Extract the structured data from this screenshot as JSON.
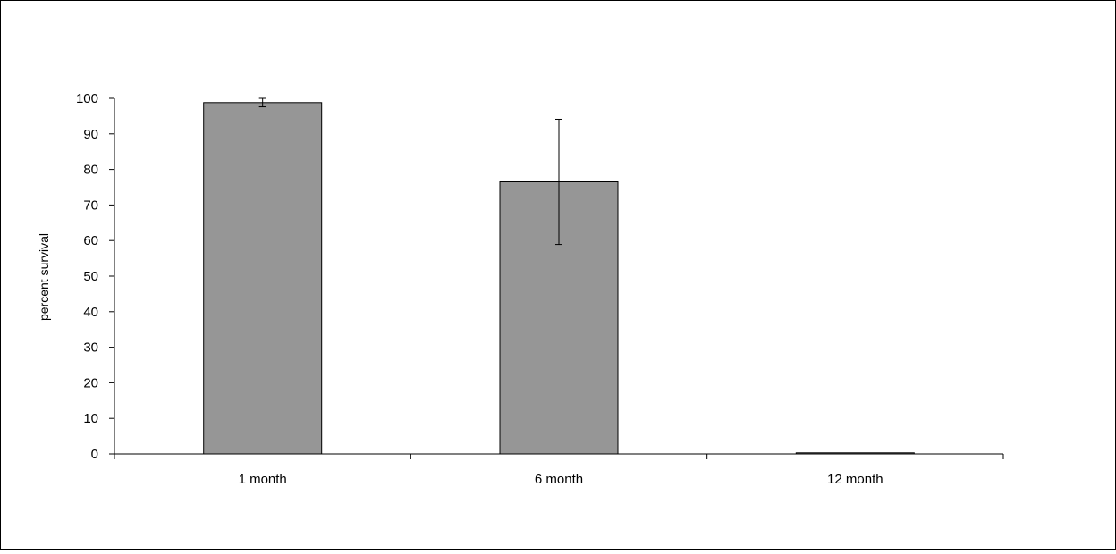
{
  "chart_data": {
    "type": "bar",
    "title": "",
    "xlabel": "",
    "ylabel": "percent survival",
    "categories": [
      "1 month",
      "6 month",
      "12 month"
    ],
    "series": [
      {
        "values": [
          98.8,
          76.5,
          0.3
        ],
        "error": [
          1.2,
          17.6,
          0
        ]
      }
    ],
    "ylim": [
      0,
      100
    ],
    "yticks": [
      0,
      10,
      20,
      30,
      40,
      50,
      60,
      70,
      80,
      90,
      100
    ],
    "ytick_labels": [
      "0",
      "10",
      "20",
      "30",
      "40",
      "50",
      "60",
      "70",
      "80",
      "90",
      "100"
    ],
    "grid": false,
    "legend": "none",
    "colors": {
      "bar_fill": "#969696",
      "bar_stroke": "#000000",
      "axis": "#000000",
      "background": "#ffffff"
    }
  }
}
